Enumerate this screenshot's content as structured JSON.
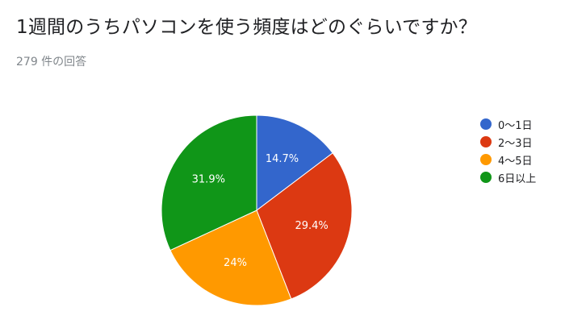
{
  "header": {
    "title": "1週間のうちパソコンを使う頻度はどのぐらいですか？",
    "response_count": "279 件の回答"
  },
  "chart_data": {
    "type": "pie",
    "categories": [
      "0〜1日",
      "2〜3日",
      "4〜5日",
      "6日以上"
    ],
    "values": [
      14.7,
      29.4,
      24,
      31.9
    ],
    "labels": [
      "14.7%",
      "29.4%",
      "24%",
      "31.9%"
    ],
    "colors": [
      "#3366cc",
      "#dc3912",
      "#ff9900",
      "#109618"
    ],
    "legend_position": "right"
  }
}
